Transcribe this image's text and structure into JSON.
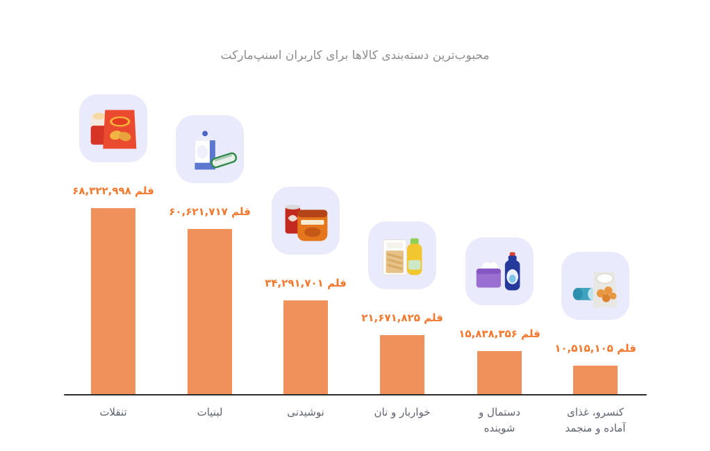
{
  "page": {
    "background": "#ffffff"
  },
  "chart_data": {
    "type": "bar",
    "title": "محبوب‌ترین دسته‌بندی کالاها برای کاربران اسنپ‌مارکت",
    "unit_label": "قلم",
    "categories": [
      "تنقلات",
      "لبنیات",
      "نوشیدنی",
      "خواربار و نان",
      "دستمال و شوینده",
      "کنسرو، غذای آماده و منجمد"
    ],
    "categories_display": [
      [
        "تنقلات"
      ],
      [
        "لبنیات"
      ],
      [
        "نوشیدنی"
      ],
      [
        "خواربار و نان"
      ],
      [
        "دستمال و",
        "شوینده"
      ],
      [
        "کنسرو، غذای",
        "آماده و منجمد"
      ]
    ],
    "values": [
      68322998,
      60621717,
      34291701,
      21671825,
      15838356,
      10515105
    ],
    "value_labels": [
      "۶۸,۳۲۲,۹۹۸",
      "۶۰,۶۲۱,۷۱۷",
      "۳۴,۲۹۱,۷۰۱",
      "۲۱,۶۷۱,۸۲۵",
      "۱۵,۸۳۸,۳۵۶",
      "۱۰,۵۱۵,۱۰۵"
    ],
    "icons": [
      "snacks-chips-bag-icon",
      "dairy-milk-carton-icon",
      "beverage-cola-can-icon",
      "grocery-pasta-oil-icon",
      "tissue-detergent-icon",
      "canned-frozen-food-icon"
    ],
    "ylim": [
      0,
      68322998
    ],
    "grid": false,
    "legend": false,
    "orientation": "vertical",
    "colors": {
      "bar": "#F0915C",
      "value_text": "#F4772E",
      "category_text": "#5C6370",
      "title_text": "#8E8C8C",
      "icon_bg": "#E9EAFB",
      "axis": "#2B2B2B"
    }
  }
}
